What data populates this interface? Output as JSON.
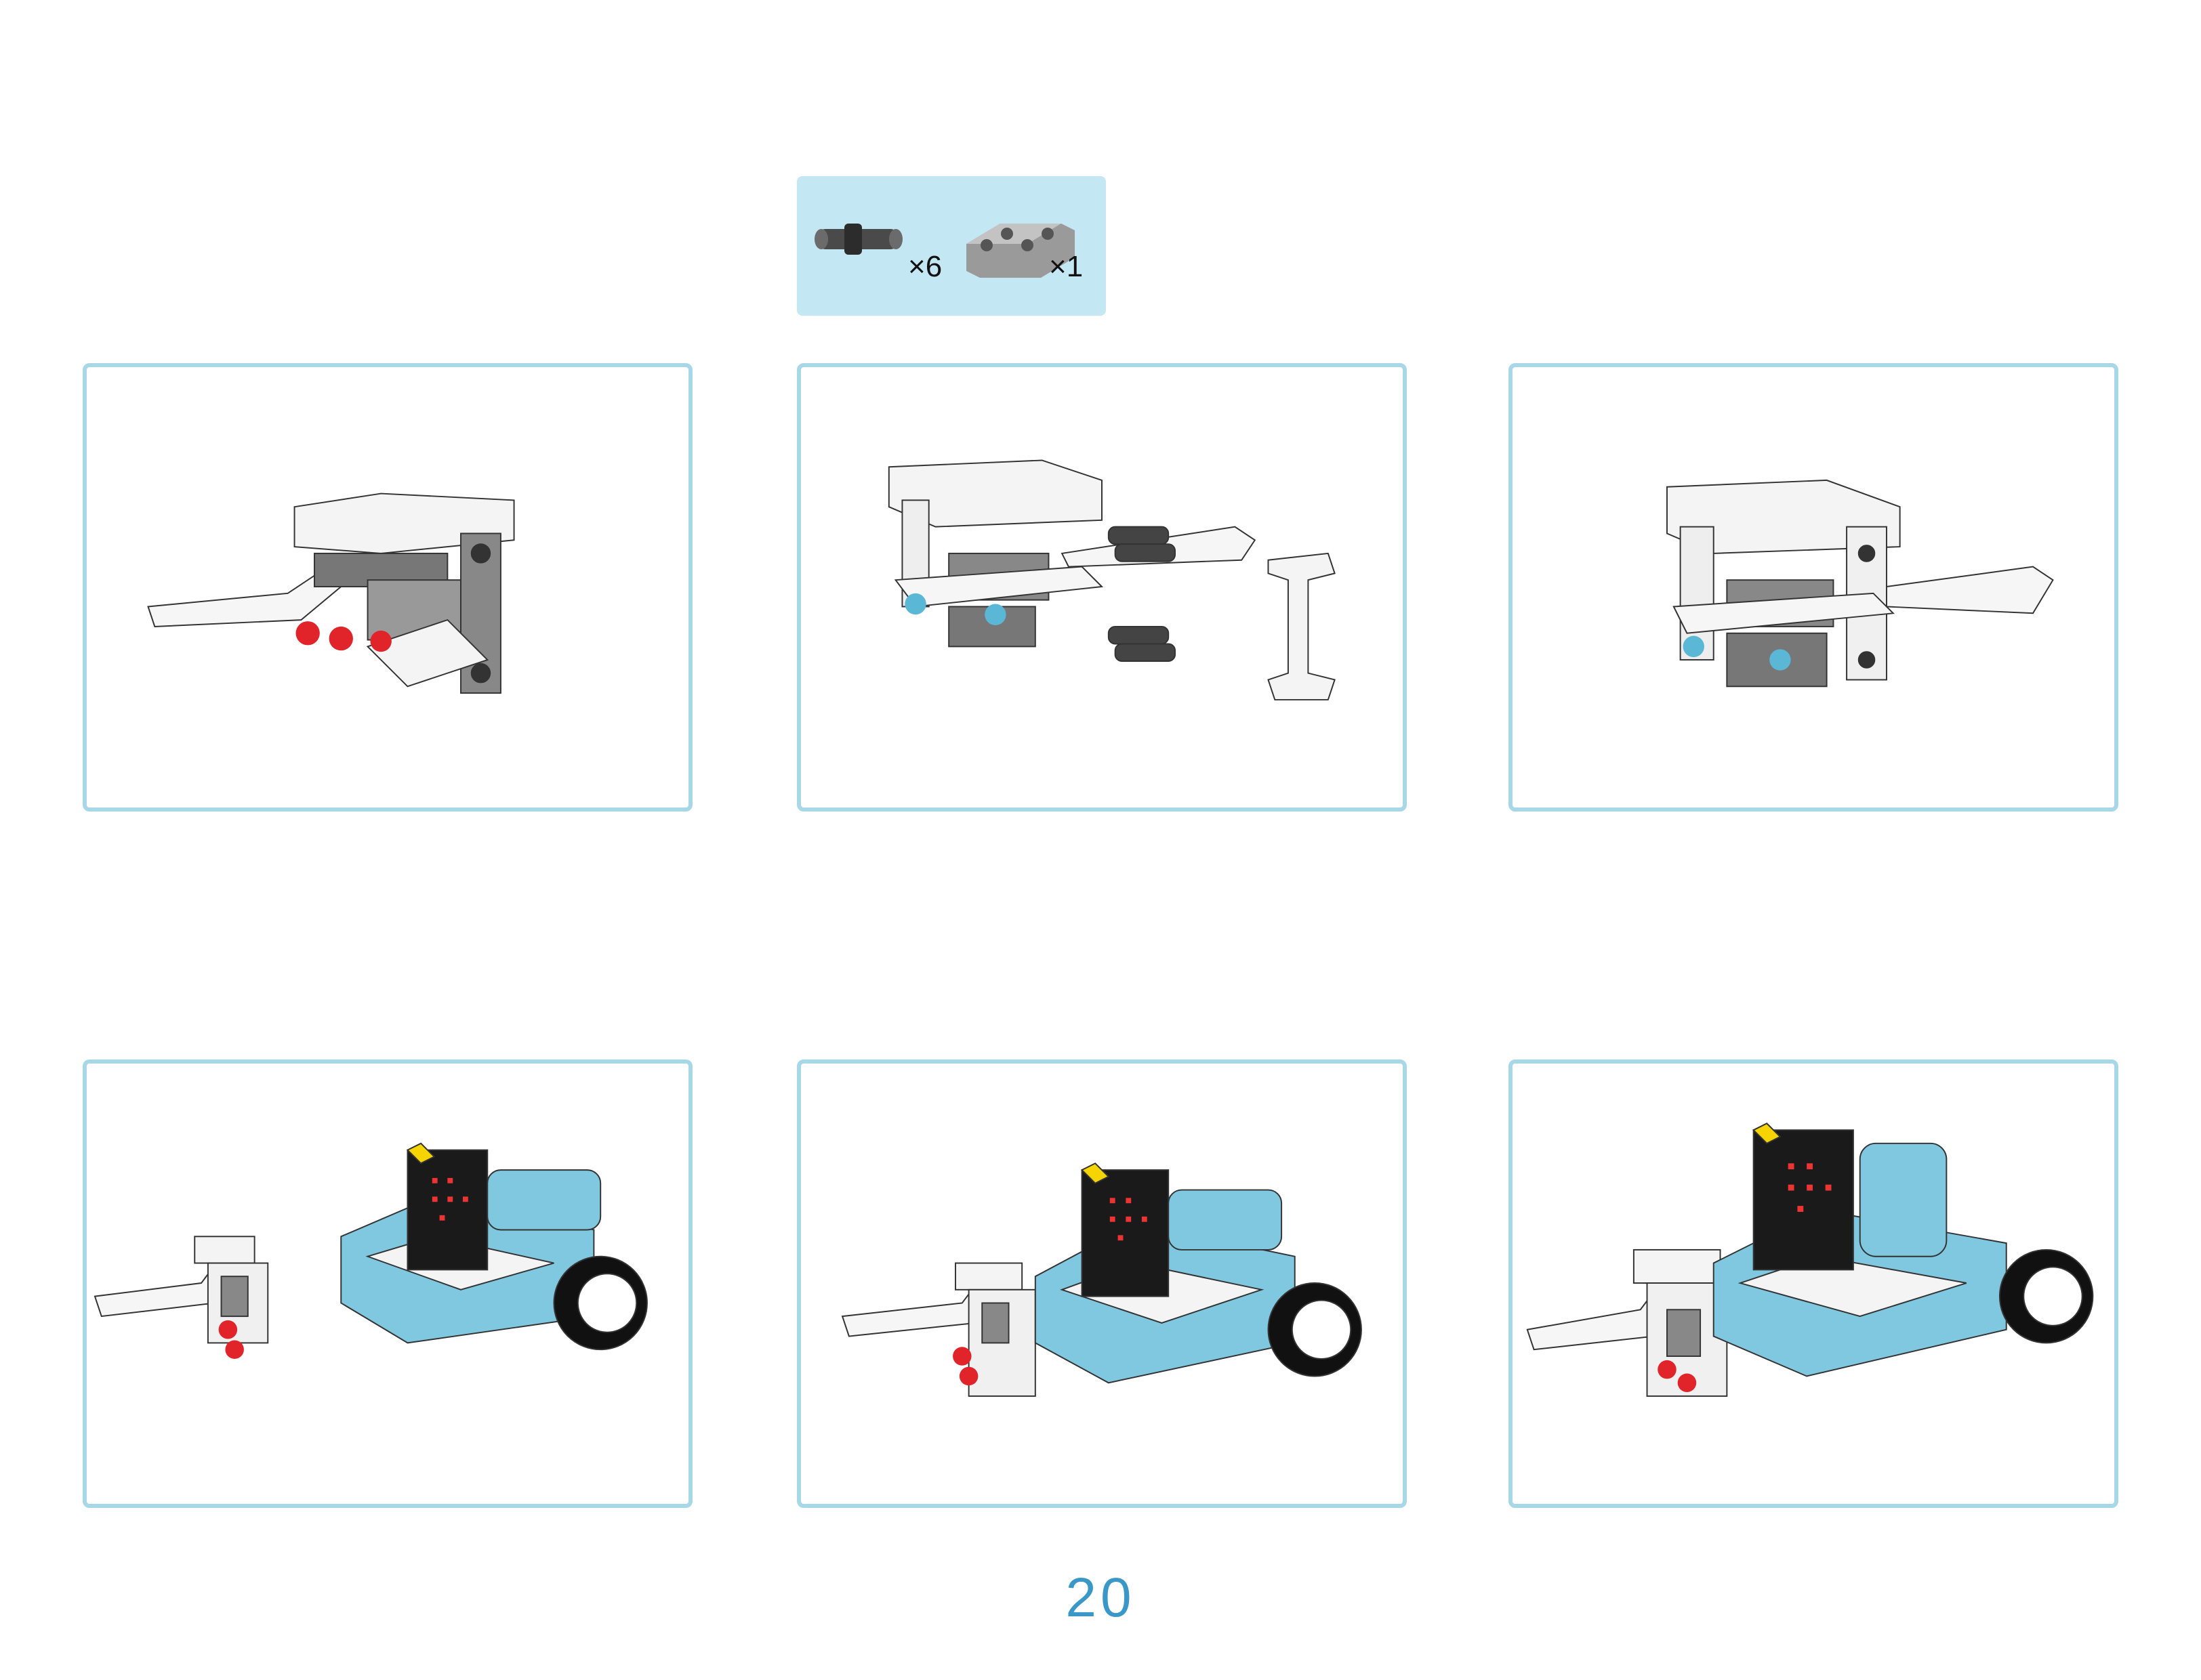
{
  "parts": [
    {
      "icon": "connector-pin-icon",
      "quantity": "×6"
    },
    {
      "icon": "h-beam-icon",
      "quantity": "×1"
    }
  ],
  "steps": [
    {
      "row": 1,
      "col": 1,
      "illustration": "claw-assembly-icon"
    },
    {
      "row": 1,
      "col": 2,
      "illustration": "claw-exploded-icon"
    },
    {
      "row": 1,
      "col": 3,
      "illustration": "claw-frame-icon"
    },
    {
      "row": 2,
      "col": 1,
      "illustration": "car-and-claw-separate-icon"
    },
    {
      "row": 2,
      "col": 2,
      "illustration": "car-claw-attaching-icon"
    },
    {
      "row": 2,
      "col": 3,
      "illustration": "car-claw-assembled-icon"
    }
  ],
  "colors": {
    "border": "#a8d8e8",
    "parts_bg": "#c4e7f4",
    "page_number": "#3a98c8",
    "accent_red": "#e0242a",
    "accent_blue": "#5ab8d6"
  },
  "page_number": "20"
}
